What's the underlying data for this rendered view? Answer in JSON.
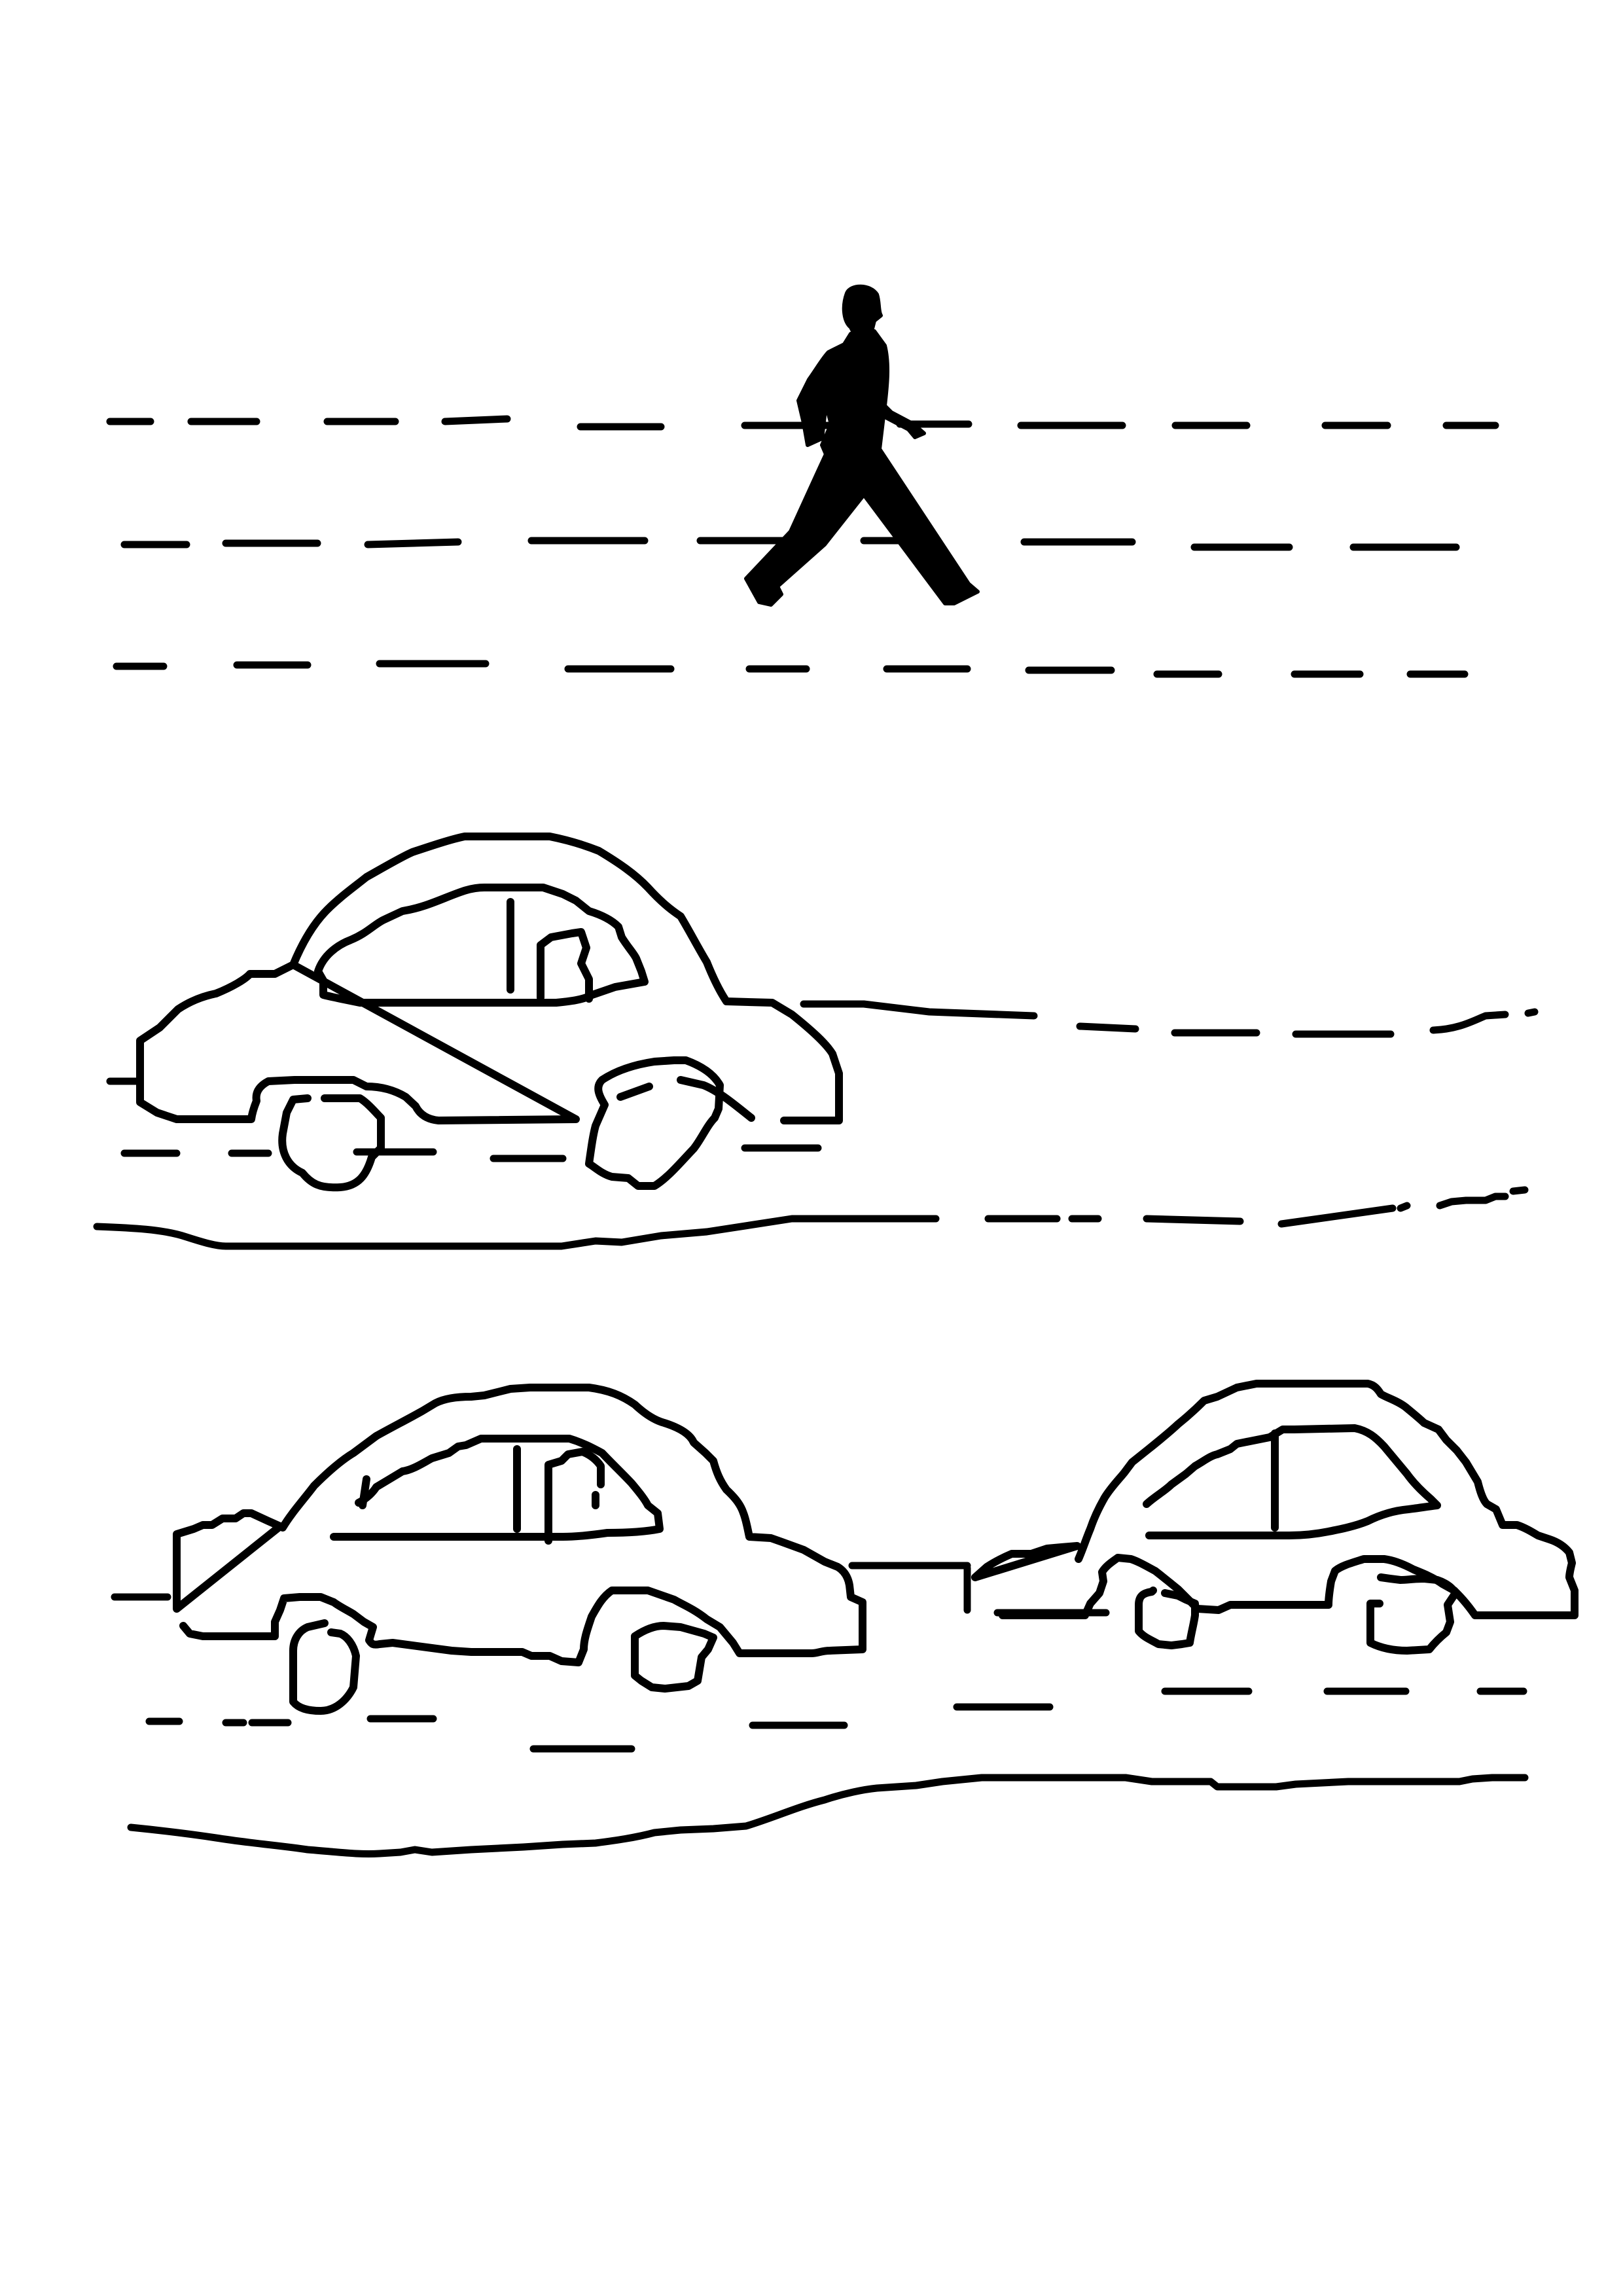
{
  "colors": {
    "ink": "#000000",
    "paper": "#ffffff"
  },
  "crossing": {
    "lane_line_count": 3
  },
  "upper_road": {
    "car_count": 1
  },
  "lower_road": {
    "car_count": 2
  }
}
